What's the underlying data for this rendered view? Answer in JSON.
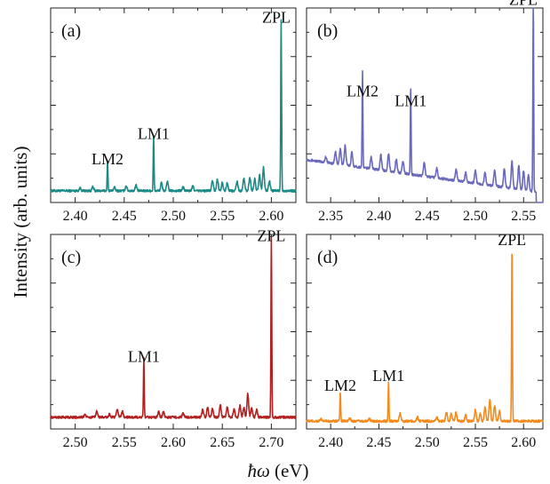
{
  "figure": {
    "ylabel": "Intensity (arb. units)",
    "xlabel_symbol": "ħω",
    "xlabel_unit": " (eV)"
  },
  "chart_data": [
    {
      "type": "line",
      "panel_label": "(a)",
      "color": "#1b8a86",
      "xlim": [
        2.375,
        2.625
      ],
      "ylim": [
        0,
        1
      ],
      "xticks": [
        2.4,
        2.45,
        2.5,
        2.55,
        2.6
      ],
      "xtick_labels": [
        "2.40",
        "2.45",
        "2.50",
        "2.55",
        "2.60"
      ],
      "baseline": 0.06,
      "noise_peaks": [
        [
          2.405,
          0.015
        ],
        [
          2.418,
          0.02
        ],
        [
          2.44,
          0.018
        ],
        [
          2.452,
          0.025
        ],
        [
          2.462,
          0.03
        ],
        [
          2.488,
          0.04
        ],
        [
          2.494,
          0.045
        ],
        [
          2.51,
          0.02
        ],
        [
          2.52,
          0.025
        ],
        [
          2.54,
          0.05
        ],
        [
          2.545,
          0.06
        ],
        [
          2.55,
          0.045
        ],
        [
          2.555,
          0.04
        ],
        [
          2.565,
          0.05
        ],
        [
          2.572,
          0.065
        ],
        [
          2.578,
          0.07
        ],
        [
          2.583,
          0.06
        ],
        [
          2.588,
          0.08
        ],
        [
          2.592,
          0.12
        ],
        [
          2.598,
          0.05
        ]
      ],
      "peaks": [
        {
          "label": "LM2",
          "x": 2.433,
          "y": 0.15
        },
        {
          "label": "LM1",
          "x": 2.48,
          "y": 0.28
        },
        {
          "label": "ZPL",
          "x": 2.61,
          "y": 0.88
        }
      ]
    },
    {
      "type": "line",
      "panel_label": "(b)",
      "color": "#6a68bc",
      "xlim": [
        2.325,
        2.57
      ],
      "ylim": [
        0,
        1
      ],
      "xticks": [
        2.35,
        2.4,
        2.45,
        2.5,
        2.55
      ],
      "xtick_labels": [
        "2.35",
        "2.40",
        "2.45",
        "2.50",
        "2.55"
      ],
      "baseline_start": 0.22,
      "baseline_end": 0.05,
      "noise_peaks": [
        [
          2.345,
          0.03
        ],
        [
          2.355,
          0.06
        ],
        [
          2.36,
          0.08
        ],
        [
          2.365,
          0.1
        ],
        [
          2.372,
          0.07
        ],
        [
          2.392,
          0.06
        ],
        [
          2.402,
          0.08
        ],
        [
          2.41,
          0.09
        ],
        [
          2.418,
          0.07
        ],
        [
          2.425,
          0.06
        ],
        [
          2.447,
          0.07
        ],
        [
          2.46,
          0.05
        ],
        [
          2.48,
          0.06
        ],
        [
          2.49,
          0.05
        ],
        [
          2.5,
          0.07
        ],
        [
          2.51,
          0.06
        ],
        [
          2.52,
          0.08
        ],
        [
          2.53,
          0.1
        ],
        [
          2.538,
          0.14
        ],
        [
          2.545,
          0.12
        ],
        [
          2.55,
          0.1
        ],
        [
          2.555,
          0.08
        ]
      ],
      "peaks": [
        {
          "label": "LM2",
          "x": 2.383,
          "y": 0.5
        },
        {
          "label": "LM1",
          "x": 2.433,
          "y": 0.45
        },
        {
          "label": "ZPL",
          "x": 2.56,
          "y": 0.97
        }
      ]
    },
    {
      "type": "line",
      "panel_label": "(c)",
      "color": "#b32020",
      "xlim": [
        2.475,
        2.725
      ],
      "ylim": [
        0,
        1
      ],
      "xticks": [
        2.5,
        2.55,
        2.6,
        2.65,
        2.7
      ],
      "xtick_labels": [
        "2.50",
        "2.55",
        "2.60",
        "2.65",
        "2.70"
      ],
      "baseline": 0.06,
      "noise_peaks": [
        [
          2.51,
          0.015
        ],
        [
          2.522,
          0.03
        ],
        [
          2.535,
          0.015
        ],
        [
          2.543,
          0.04
        ],
        [
          2.548,
          0.03
        ],
        [
          2.585,
          0.03
        ],
        [
          2.59,
          0.025
        ],
        [
          2.61,
          0.02
        ],
        [
          2.63,
          0.04
        ],
        [
          2.635,
          0.05
        ],
        [
          2.64,
          0.045
        ],
        [
          2.648,
          0.06
        ],
        [
          2.655,
          0.05
        ],
        [
          2.662,
          0.04
        ],
        [
          2.668,
          0.06
        ],
        [
          2.672,
          0.05
        ],
        [
          2.676,
          0.12
        ],
        [
          2.68,
          0.05
        ],
        [
          2.685,
          0.04
        ]
      ],
      "peaks": [
        {
          "label": "LM1",
          "x": 2.57,
          "y": 0.3
        },
        {
          "label": "ZPL",
          "x": 2.7,
          "y": 0.92
        }
      ]
    },
    {
      "type": "line",
      "panel_label": "(d)",
      "color": "#f58a1c",
      "xlim": [
        2.375,
        2.62
      ],
      "ylim": [
        0,
        1
      ],
      "xticks": [
        2.4,
        2.45,
        2.5,
        2.55,
        2.6
      ],
      "xtick_labels": [
        "2.40",
        "2.45",
        "2.50",
        "2.55",
        "2.60"
      ],
      "baseline": 0.04,
      "noise_peaks": [
        [
          2.39,
          0.01
        ],
        [
          2.42,
          0.015
        ],
        [
          2.44,
          0.012
        ],
        [
          2.472,
          0.04
        ],
        [
          2.49,
          0.02
        ],
        [
          2.51,
          0.02
        ],
        [
          2.52,
          0.05
        ],
        [
          2.525,
          0.04
        ],
        [
          2.53,
          0.045
        ],
        [
          2.54,
          0.03
        ],
        [
          2.55,
          0.06
        ],
        [
          2.555,
          0.04
        ],
        [
          2.56,
          0.07
        ],
        [
          2.565,
          0.11
        ],
        [
          2.57,
          0.08
        ],
        [
          2.575,
          0.05
        ]
      ],
      "peaks": [
        {
          "label": "LM2",
          "x": 2.41,
          "y": 0.15
        },
        {
          "label": "LM1",
          "x": 2.46,
          "y": 0.2
        },
        {
          "label": "ZPL",
          "x": 2.588,
          "y": 0.9
        }
      ]
    }
  ]
}
